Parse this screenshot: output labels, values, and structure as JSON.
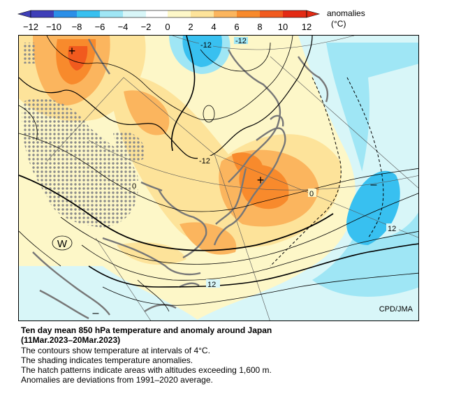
{
  "legend": {
    "title": "anomalies",
    "unit": "(°C)",
    "ticks": [
      "−12",
      "−10",
      "−8",
      "−6",
      "−4",
      "−2",
      "0",
      "2",
      "4",
      "6",
      "8",
      "10",
      "12"
    ],
    "colors": [
      "#3f3fb8",
      "#2b8fe8",
      "#38c0f0",
      "#9fe6f5",
      "#d8f6f8",
      "#ffffff",
      "#fdf7c8",
      "#fde39a",
      "#fbb55e",
      "#f88a2c",
      "#f15a1e",
      "#e32a14"
    ]
  },
  "map": {
    "contour_labels": [
      "-12",
      "-12",
      "-12",
      "0",
      "0",
      "12",
      "12"
    ],
    "markers": [
      "+",
      "+",
      "–",
      "–"
    ],
    "w_label": "W",
    "credit": "CPD/JMA"
  },
  "caption": {
    "title_line1": "Ten day mean 850 hPa temperature and anomaly around Japan",
    "title_line2": "(11Mar.2023–20Mar.2023)",
    "line1": "The contours show temperature at intervals of 4°C.",
    "line2": "The shading indicates temperature anomalies.",
    "line3": "The hatch patterns indicate areas with altitudes exceeding 1,600 m.",
    "line4": "Anomalies are deviations from 1991–2020 average."
  }
}
